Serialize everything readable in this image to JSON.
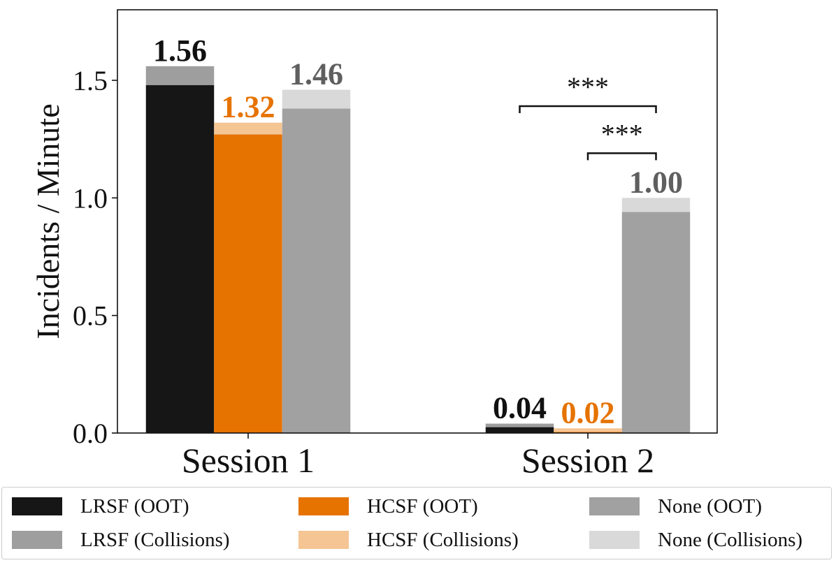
{
  "chart_data": {
    "type": "bar",
    "stacked": true,
    "ylabel": "Incidents / Minute",
    "xlabel": "",
    "ylim": [
      0,
      1.8
    ],
    "yticks": [
      "0.0",
      "0.5",
      "1.0",
      "1.5"
    ],
    "categories": [
      "Session 1",
      "Session 2"
    ],
    "series": [
      {
        "name": "LRSF (OOT)",
        "group": "LRSF",
        "part": "base",
        "values": [
          1.48,
          0.025
        ]
      },
      {
        "name": "LRSF (Collisions)",
        "group": "LRSF",
        "part": "top",
        "values": [
          0.08,
          0.015
        ]
      },
      {
        "name": "HCSF (OOT)",
        "group": "HCSF",
        "part": "base",
        "values": [
          1.27,
          0.005
        ]
      },
      {
        "name": "HCSF (Collisions)",
        "group": "HCSF",
        "part": "top",
        "values": [
          0.05,
          0.015
        ]
      },
      {
        "name": "None (OOT)",
        "group": "None",
        "part": "base",
        "values": [
          1.38,
          0.94
        ]
      },
      {
        "name": "None (Collisions)",
        "group": "None",
        "part": "top",
        "values": [
          0.08,
          0.06
        ]
      }
    ],
    "totals": {
      "LRSF": [
        "1.56",
        "0.04"
      ],
      "HCSF": [
        "1.32",
        "0.02"
      ],
      "None": [
        "1.46",
        "1.00"
      ]
    },
    "significance": [
      {
        "session": "Session 2",
        "from": "LRSF",
        "to": "None",
        "label": "***",
        "level": 1.39
      },
      {
        "session": "Session 2",
        "from": "HCSF",
        "to": "None",
        "label": "***",
        "level": 1.19
      }
    ]
  },
  "colors": {
    "LRSF_base": "#161616",
    "LRSF_top": "#9e9e9e",
    "HCSF_base": "#e67300",
    "HCSF_top": "#f5c594",
    "None_base": "#a1a1a1",
    "None_top": "#d9d9d9",
    "LRSF_label": "#111111",
    "HCSF_label": "#e67300",
    "None_label": "#5f5f5f"
  },
  "legend": {
    "items": [
      {
        "label": "LRSF (OOT)",
        "color_key": "LRSF_base"
      },
      {
        "label": "LRSF (Collisions)",
        "color_key": "LRSF_top"
      },
      {
        "label": "HCSF (OOT)",
        "color_key": "HCSF_base"
      },
      {
        "label": "HCSF (Collisions)",
        "color_key": "HCSF_top"
      },
      {
        "label": "None (OOT)",
        "color_key": "None_base"
      },
      {
        "label": "None (Collisions)",
        "color_key": "None_top"
      }
    ]
  }
}
